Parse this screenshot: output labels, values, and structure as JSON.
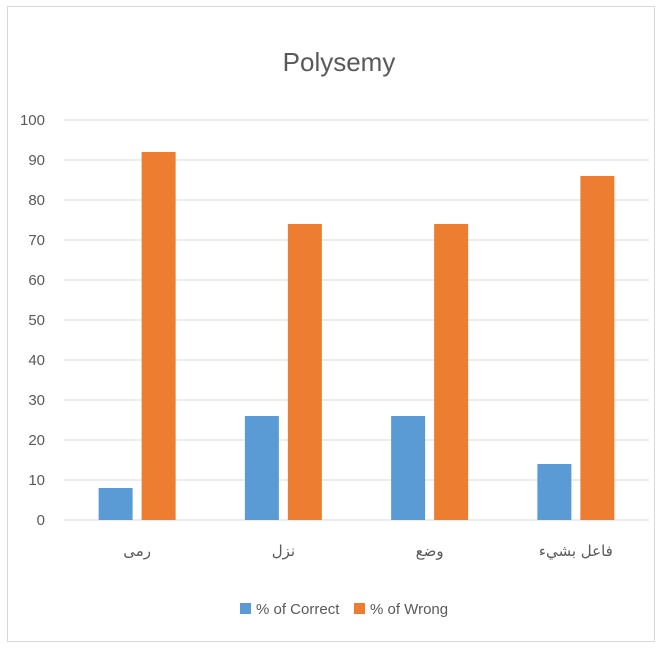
{
  "chart_data": {
    "type": "bar",
    "title": "Polysemy",
    "categories": [
      "رمى",
      "نزل",
      "وضع",
      "فاعل بشيء"
    ],
    "series": [
      {
        "name": "% of Correct",
        "color": "#5B9BD5",
        "values": [
          8,
          26,
          26,
          14
        ]
      },
      {
        "name": "% of Wrong",
        "color": "#ED7D31",
        "values": [
          92,
          74,
          74,
          86
        ]
      }
    ],
    "ylim": [
      0,
      100
    ],
    "yticks": [
      0,
      10,
      20,
      30,
      40,
      50,
      60,
      70,
      80,
      90,
      100
    ],
    "grid": true,
    "legend": "bottom"
  }
}
